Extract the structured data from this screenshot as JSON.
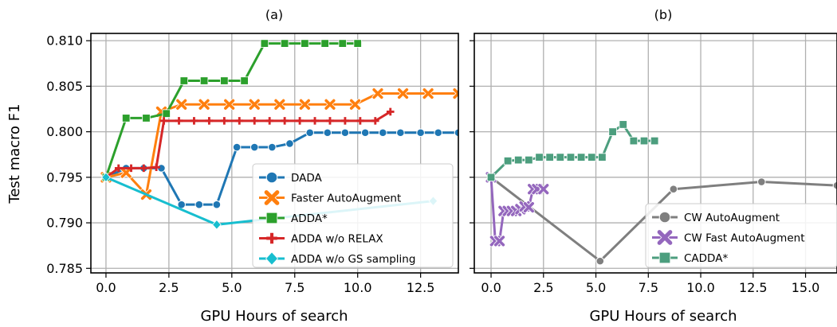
{
  "chart_data": [
    {
      "type": "line",
      "title": "(a)",
      "xlabel": "GPU Hours of search",
      "ylabel": "Test macro F1",
      "xlim": [
        -0.6,
        14.0
      ],
      "ylim": [
        0.7845,
        0.8108
      ],
      "x_ticks": [
        0.0,
        2.5,
        5.0,
        7.5,
        10.0,
        12.5
      ],
      "x_tick_labels": [
        "0.0",
        "2.5",
        "5.0",
        "7.5",
        "10.0",
        "12.5"
      ],
      "y_ticks": [
        0.785,
        0.79,
        0.795,
        0.8,
        0.805,
        0.81
      ],
      "y_tick_labels": [
        "0.785",
        "0.790",
        "0.795",
        "0.800",
        "0.805",
        "0.810"
      ],
      "grid": true,
      "legend_position": "lower-right",
      "series": [
        {
          "name": "DADA",
          "color": "#1f77b4",
          "marker": "circle",
          "x": [
            0.0,
            0.8,
            1.5,
            2.2,
            3.0,
            3.7,
            4.4,
            5.2,
            5.9,
            6.6,
            7.3,
            8.1,
            8.8,
            9.5,
            10.3,
            11.0,
            11.7,
            12.5,
            13.2,
            14.0
          ],
          "y": [
            0.795,
            0.796,
            0.796,
            0.796,
            0.792,
            0.792,
            0.792,
            0.7983,
            0.7983,
            0.7983,
            0.7987,
            0.7999,
            0.7999,
            0.7999,
            0.7999,
            0.7999,
            0.7999,
            0.7999,
            0.7999,
            0.7999
          ]
        },
        {
          "name": "Faster AutoAugment",
          "color": "#ff7f0e",
          "marker": "x",
          "x": [
            0.0,
            0.8,
            1.6,
            2.2,
            3.0,
            3.9,
            4.9,
            5.9,
            6.9,
            7.9,
            8.9,
            9.9,
            10.8,
            11.8,
            12.8,
            14.0
          ],
          "y": [
            0.795,
            0.7955,
            0.7931,
            0.8022,
            0.803,
            0.803,
            0.803,
            0.803,
            0.803,
            0.803,
            0.803,
            0.803,
            0.8042,
            0.8042,
            0.8042,
            0.8042
          ]
        },
        {
          "name": "ADDA*",
          "color": "#2ca02c",
          "marker": "square",
          "x": [
            0.0,
            0.8,
            1.6,
            2.4,
            3.1,
            3.9,
            4.7,
            5.5,
            6.3,
            7.1,
            7.9,
            8.7,
            9.4,
            10.0
          ],
          "y": [
            0.795,
            0.8015,
            0.8015,
            0.802,
            0.8056,
            0.8056,
            0.8056,
            0.8056,
            0.8097,
            0.8097,
            0.8097,
            0.8097,
            0.8097,
            0.8097
          ]
        },
        {
          "name": "ADDA w/o RELAX",
          "color": "#d62728",
          "marker": "plus",
          "x": [
            0.0,
            0.5,
            1.0,
            1.5,
            2.0,
            2.3,
            2.9,
            3.5,
            4.1,
            4.7,
            5.3,
            5.9,
            6.5,
            7.1,
            7.7,
            8.3,
            8.9,
            9.5,
            10.1,
            10.7,
            11.3
          ],
          "y": [
            0.795,
            0.796,
            0.796,
            0.796,
            0.7961,
            0.8012,
            0.8012,
            0.8012,
            0.8012,
            0.8012,
            0.8012,
            0.8012,
            0.8012,
            0.8012,
            0.8012,
            0.8012,
            0.8012,
            0.8012,
            0.8012,
            0.8012,
            0.8022
          ]
        },
        {
          "name": "ADDA w/o GS sampling",
          "color": "#17becf",
          "marker": "diamond",
          "x": [
            0.0,
            4.4,
            13.0
          ],
          "y": [
            0.795,
            0.7898,
            0.7924
          ]
        }
      ]
    },
    {
      "type": "line",
      "title": "(b)",
      "xlabel": "GPU Hours of search",
      "ylabel": "",
      "xlim": [
        -0.8,
        16.5
      ],
      "ylim": [
        0.7845,
        0.8108
      ],
      "x_ticks": [
        0.0,
        2.5,
        5.0,
        7.5,
        10.0,
        12.5,
        15.0
      ],
      "x_tick_labels": [
        "0.0",
        "2.5",
        "5.0",
        "7.5",
        "10.0",
        "12.5",
        "15.0"
      ],
      "y_ticks": [
        0.785,
        0.79,
        0.795,
        0.8,
        0.805,
        0.81
      ],
      "y_tick_labels": [],
      "grid": true,
      "legend_position": "lower-right",
      "series": [
        {
          "name": "CW AutoAugment",
          "color": "#7f7f7f",
          "marker": "circle",
          "x": [
            0.0,
            5.2,
            8.7,
            12.9,
            16.5
          ],
          "y": [
            0.795,
            0.7858,
            0.7937,
            0.7945,
            0.7941
          ]
        },
        {
          "name": "CW Fast AutoAugment",
          "color": "#9467bd",
          "marker": "x",
          "x": [
            0.0,
            0.2,
            0.4,
            0.6,
            0.8,
            1.0,
            1.2,
            1.4,
            1.6,
            1.8,
            2.0,
            2.2,
            2.5
          ],
          "y": [
            0.795,
            0.788,
            0.788,
            0.7913,
            0.7913,
            0.7913,
            0.7913,
            0.7915,
            0.7918,
            0.7917,
            0.7937,
            0.7937,
            0.7937
          ]
        },
        {
          "name": "CADDA*",
          "color": "#4c9e7e",
          "marker": "square",
          "x": [
            0.0,
            0.8,
            1.3,
            1.8,
            2.3,
            2.8,
            3.3,
            3.8,
            4.3,
            4.8,
            5.3,
            5.8,
            6.3,
            6.8,
            7.3,
            7.8
          ],
          "y": [
            0.795,
            0.7968,
            0.7969,
            0.7969,
            0.7972,
            0.7972,
            0.7972,
            0.7972,
            0.7972,
            0.7972,
            0.7972,
            0.8,
            0.8008,
            0.799,
            0.799,
            0.799
          ]
        }
      ]
    }
  ]
}
